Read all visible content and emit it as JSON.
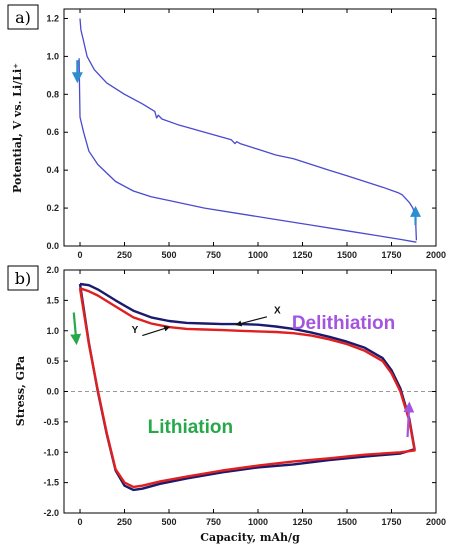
{
  "chart_data": [
    {
      "type": "line",
      "panel_label": "a)",
      "xlabel": "",
      "ylabel": "Potential, V vs. Li/Li⁺",
      "xlim": [
        -90,
        2000
      ],
      "ylim": [
        0,
        1.25
      ],
      "xticks": [
        0,
        250,
        500,
        750,
        1000,
        1250,
        1500,
        1750,
        2000
      ],
      "yticks": [
        0.0,
        0.2,
        0.4,
        0.6,
        0.8,
        1.0,
        1.2
      ],
      "grid": false,
      "series": [
        {
          "color": "#4a4ad0",
          "points": [
            [
              0,
              1.2
            ],
            [
              5,
              1.14
            ],
            [
              15,
              1.1
            ],
            [
              40,
              1.0
            ],
            [
              80,
              0.93
            ],
            [
              150,
              0.86
            ],
            [
              250,
              0.8
            ],
            [
              350,
              0.75
            ],
            [
              420,
              0.71
            ],
            [
              430,
              0.675
            ],
            [
              440,
              0.69
            ],
            [
              460,
              0.67
            ],
            [
              550,
              0.64
            ],
            [
              700,
              0.6
            ],
            [
              850,
              0.56
            ],
            [
              870,
              0.54
            ],
            [
              880,
              0.55
            ],
            [
              900,
              0.54
            ],
            [
              1000,
              0.51
            ],
            [
              1100,
              0.48
            ],
            [
              1200,
              0.46
            ],
            [
              1300,
              0.43
            ],
            [
              1400,
              0.4
            ],
            [
              1500,
              0.37
            ],
            [
              1600,
              0.34
            ],
            [
              1700,
              0.31
            ],
            [
              1790,
              0.28
            ],
            [
              1810,
              0.27
            ],
            [
              1830,
              0.25
            ],
            [
              1850,
              0.23
            ],
            [
              1870,
              0.2
            ],
            [
              1885,
              0.15
            ],
            [
              1890,
              0.03
            ]
          ]
        },
        {
          "color": "#4a4ad0",
          "points": [
            [
              -5,
              0.99
            ],
            [
              -3,
              0.85
            ],
            [
              0,
              0.68
            ],
            [
              20,
              0.6
            ],
            [
              50,
              0.5
            ],
            [
              100,
              0.43
            ],
            [
              200,
              0.34
            ],
            [
              300,
              0.29
            ],
            [
              400,
              0.26
            ],
            [
              500,
              0.24
            ],
            [
              700,
              0.2
            ],
            [
              900,
              0.17
            ],
            [
              1100,
              0.14
            ],
            [
              1300,
              0.11
            ],
            [
              1500,
              0.08
            ],
            [
              1700,
              0.05
            ],
            [
              1800,
              0.035
            ],
            [
              1890,
              0.02
            ]
          ]
        }
      ],
      "arrows": [
        {
          "color": "#2b8fcf",
          "from": [
            -15,
            0.98
          ],
          "to": [
            -15,
            0.87
          ]
        },
        {
          "color": "#2b8fcf",
          "from": [
            1885,
            0.11
          ],
          "to": [
            1885,
            0.2
          ]
        }
      ]
    },
    {
      "type": "line",
      "panel_label": "b)",
      "xlabel": "Capacity, mAh/g",
      "ylabel": "Stress, GPa",
      "xlim": [
        -90,
        2000
      ],
      "ylim": [
        -2.0,
        2.0
      ],
      "xticks": [
        0,
        250,
        500,
        750,
        1000,
        1250,
        1500,
        1750,
        2000
      ],
      "yticks": [
        2.0,
        1.5,
        1.0,
        0.5,
        0.0,
        -0.5,
        -1.0,
        -1.5,
        -2.0
      ],
      "zero_line": {
        "y": 0.0,
        "color": "#999999",
        "dashed": true
      },
      "grid": false,
      "series": [
        {
          "color": "#1a1a6e",
          "points": [
            [
              0,
              1.77
            ],
            [
              50,
              1.75
            ],
            [
              100,
              1.68
            ],
            [
              200,
              1.5
            ],
            [
              300,
              1.33
            ],
            [
              400,
              1.22
            ],
            [
              500,
              1.16
            ],
            [
              600,
              1.13
            ],
            [
              700,
              1.12
            ],
            [
              800,
              1.11
            ],
            [
              900,
              1.11
            ],
            [
              1000,
              1.1
            ],
            [
              1100,
              1.07
            ],
            [
              1200,
              1.03
            ],
            [
              1300,
              0.97
            ],
            [
              1400,
              0.9
            ],
            [
              1500,
              0.82
            ],
            [
              1600,
              0.72
            ],
            [
              1700,
              0.55
            ],
            [
              1750,
              0.35
            ],
            [
              1800,
              0.05
            ],
            [
              1850,
              -0.45
            ],
            [
              1880,
              -0.95
            ],
            [
              1800,
              -1.02
            ],
            [
              1600,
              -1.07
            ],
            [
              1400,
              -1.13
            ],
            [
              1200,
              -1.2
            ],
            [
              1000,
              -1.25
            ],
            [
              800,
              -1.33
            ],
            [
              600,
              -1.43
            ],
            [
              450,
              -1.52
            ],
            [
              350,
              -1.6
            ],
            [
              300,
              -1.62
            ],
            [
              250,
              -1.55
            ],
            [
              200,
              -1.3
            ],
            [
              150,
              -0.7
            ],
            [
              100,
              0.0
            ],
            [
              50,
              0.8
            ],
            [
              0,
              1.77
            ]
          ]
        },
        {
          "color": "#e02020",
          "points": [
            [
              0,
              1.7
            ],
            [
              50,
              1.65
            ],
            [
              100,
              1.58
            ],
            [
              200,
              1.4
            ],
            [
              300,
              1.22
            ],
            [
              400,
              1.12
            ],
            [
              500,
              1.06
            ],
            [
              600,
              1.03
            ],
            [
              700,
              1.02
            ],
            [
              800,
              1.01
            ],
            [
              900,
              1.0
            ],
            [
              1000,
              0.99
            ],
            [
              1100,
              0.98
            ],
            [
              1200,
              0.96
            ],
            [
              1300,
              0.92
            ],
            [
              1400,
              0.86
            ],
            [
              1500,
              0.78
            ],
            [
              1600,
              0.67
            ],
            [
              1700,
              0.5
            ],
            [
              1750,
              0.3
            ],
            [
              1800,
              0.0
            ],
            [
              1850,
              -0.48
            ],
            [
              1880,
              -0.97
            ],
            [
              1800,
              -1.0
            ],
            [
              1600,
              -1.04
            ],
            [
              1400,
              -1.1
            ],
            [
              1200,
              -1.15
            ],
            [
              1000,
              -1.22
            ],
            [
              800,
              -1.3
            ],
            [
              600,
              -1.4
            ],
            [
              450,
              -1.48
            ],
            [
              350,
              -1.55
            ],
            [
              300,
              -1.57
            ],
            [
              250,
              -1.5
            ],
            [
              200,
              -1.28
            ],
            [
              150,
              -0.68
            ],
            [
              100,
              0.02
            ],
            [
              50,
              0.78
            ],
            [
              0,
              1.7
            ]
          ]
        }
      ],
      "annotations": [
        {
          "text": "Delithiation",
          "color": "#a355e0",
          "at": [
            1190,
            1.03
          ]
        },
        {
          "text": "Lithiation",
          "color": "#28a84a",
          "at": [
            380,
            -0.68
          ]
        },
        {
          "text": "X",
          "at": [
            1090,
            1.28
          ]
        },
        {
          "text": "Y",
          "at": [
            290,
            0.96
          ]
        }
      ],
      "pointer_arrows": [
        {
          "color": "#111111",
          "from": [
            1050,
            1.23
          ],
          "to": [
            880,
            1.1
          ]
        },
        {
          "color": "#111111",
          "from": [
            350,
            0.92
          ],
          "to": [
            500,
            1.06
          ]
        }
      ],
      "arrows": [
        {
          "color": "#28a84a",
          "from": [
            -35,
            1.3
          ],
          "to": [
            -20,
            0.8
          ]
        },
        {
          "color": "#a355e0",
          "from": [
            1840,
            -0.75
          ],
          "to": [
            1850,
            -0.2
          ]
        }
      ]
    }
  ]
}
